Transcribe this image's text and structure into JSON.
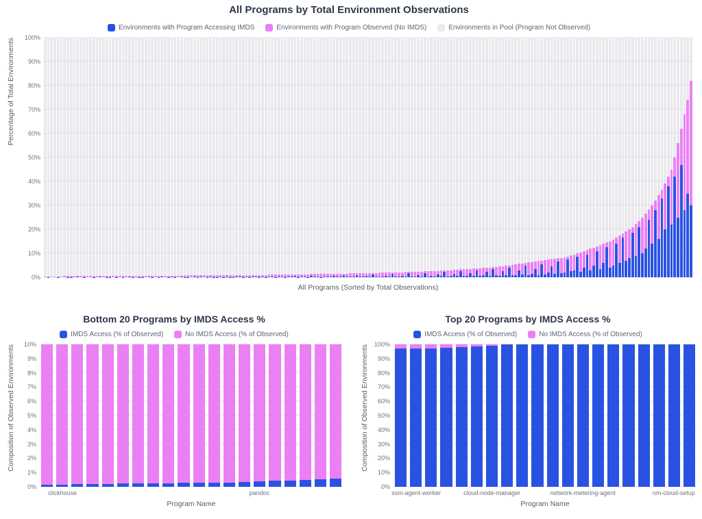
{
  "colors": {
    "imds_blue": "#2a52e2",
    "observed_pink": "#ea80f4",
    "pool_gray": "#e9e9ee",
    "grid": "#e7e7ec",
    "title_text": "#2b3648",
    "axis_text": "#5b6572"
  },
  "chart_data": [
    {
      "id": "all-programs",
      "type": "bar",
      "bar_type": "stacked",
      "title": "All Programs by Total Environment Observations",
      "xlabel": "All Programs (Sorted by Total Observations)",
      "ylabel": "Percentage of Total Environments",
      "ymax": 100,
      "yticks": [
        "0%",
        "10%",
        "20%",
        "30%",
        "40%",
        "50%",
        "60%",
        "70%",
        "80%",
        "90%",
        "100%"
      ],
      "legend": [
        {
          "key": "imds",
          "label": "Environments with Program Accessing IMDS",
          "color": "#2a52e2"
        },
        {
          "key": "observed-no-imds",
          "label": "Environments with Program Observed (No IMDS)",
          "color": "#ea80f4"
        },
        {
          "key": "pool",
          "label": "Environments in Pool (Program Not Observed)",
          "color": "#e9e9ee"
        }
      ],
      "n_bars": 200,
      "xtick_labels": [],
      "series": [
        {
          "key": "imds",
          "color": "#2a52e2",
          "cumulative": [
            0,
            0.1,
            0,
            0,
            0.1,
            0,
            0,
            0.1,
            0.1,
            0,
            0.2,
            0,
            0.1,
            0,
            0,
            0.1,
            0,
            0.2,
            0,
            0.1,
            0.1,
            0,
            0.1,
            0,
            0.1,
            0,
            0.2,
            0.1,
            0,
            0.1,
            0.1,
            0,
            0.2,
            0.1,
            0,
            0.1,
            0.2,
            0,
            0.1,
            0.3,
            0.1,
            0,
            0.2,
            0.1,
            0.1,
            0,
            0.2,
            0.1,
            0.3,
            0,
            0.1,
            0.2,
            0.1,
            0.1,
            0.3,
            0.1,
            0.2,
            0.1,
            0.1,
            0.2,
            0.2,
            0.1,
            0.3,
            0.1,
            0.2,
            0.4,
            0.1,
            0.2,
            0.1,
            0.3,
            0.2,
            0.1,
            0.4,
            0.2,
            0.1,
            0.3,
            0.2,
            0.5,
            0.1,
            0.2,
            0.3,
            0.1,
            0.6,
            0.2,
            0.3,
            0.1,
            0.4,
            0.2,
            0.3,
            0.5,
            0.2,
            0.3,
            0.8,
            0.2,
            0.4,
            0.3,
            1.0,
            0.2,
            0.3,
            0.5,
            0.2,
            1.2,
            0.3,
            0.4,
            0.2,
            0.6,
            0.3,
            1.4,
            0.2,
            0.4,
            0.6,
            0.3,
            1.6,
            0.4,
            0.3,
            0.8,
            0.4,
            1.8,
            0.3,
            0.5,
            0.4,
            1.2,
            0.5,
            2.2,
            0.4,
            0.6,
            1.5,
            0.5,
            2.6,
            0.6,
            0.5,
            1.8,
            0.6,
            3.0,
            0.5,
            0.8,
            2.2,
            0.6,
            3.5,
            0.8,
            0.6,
            2.5,
            0.8,
            4.0,
            1.0,
            0.8,
            3.0,
            1.2,
            4.8,
            0.9,
            1.5,
            3.5,
            1.0,
            5.5,
            1.2,
            2.0,
            4.5,
            1.5,
            6.5,
            1.8,
            2.0,
            7.5,
            2.5,
            3.0,
            8.5,
            2.2,
            4.0,
            9.5,
            3.0,
            5.0,
            11.0,
            3.5,
            6.0,
            12.5,
            4.0,
            5.0,
            14.0,
            6.0,
            16.5,
            7.0,
            8.0,
            18.5,
            9.0,
            21.0,
            10.0,
            12.0,
            24.0,
            14.0,
            28.0,
            16.0,
            33.0,
            20.0,
            38.0,
            22.0,
            42.0,
            25.0,
            47.0,
            28.0,
            35.0,
            30.0
          ]
        },
        {
          "key": "observed-no-imds",
          "color": "#ea80f4",
          "cumulative": [
            0.4,
            0.4,
            0.4,
            0.4,
            0.4,
            0.4,
            0.5,
            0.5,
            0.5,
            0.5,
            0.5,
            0.5,
            0.5,
            0.5,
            0.5,
            0.5,
            0.5,
            0.5,
            0.5,
            0.6,
            0.6,
            0.6,
            0.6,
            0.6,
            0.6,
            0.6,
            0.6,
            0.6,
            0.6,
            0.6,
            0.6,
            0.6,
            0.6,
            0.7,
            0.7,
            0.7,
            0.7,
            0.7,
            0.7,
            0.7,
            0.7,
            0.7,
            0.7,
            0.8,
            0.8,
            0.8,
            0.8,
            0.8,
            0.8,
            0.8,
            0.8,
            0.8,
            0.8,
            0.9,
            0.9,
            0.9,
            0.9,
            0.9,
            0.9,
            0.9,
            0.9,
            0.9,
            0.9,
            1.0,
            1.0,
            1.0,
            1.0,
            1.0,
            1.0,
            1.1,
            1.1,
            1.1,
            1.1,
            1.1,
            1.1,
            1.2,
            1.2,
            1.2,
            1.2,
            1.2,
            1.2,
            1.2,
            1.3,
            1.3,
            1.3,
            1.3,
            1.3,
            1.4,
            1.4,
            1.4,
            1.4,
            1.5,
            1.5,
            1.5,
            1.6,
            1.6,
            1.6,
            1.7,
            1.7,
            1.7,
            1.8,
            1.8,
            1.8,
            1.9,
            1.9,
            1.9,
            2.0,
            2.0,
            2.1,
            2.1,
            2.1,
            2.2,
            2.2,
            2.3,
            2.3,
            2.4,
            2.4,
            2.5,
            2.5,
            2.6,
            2.6,
            2.7,
            2.8,
            2.9,
            3.0,
            3.0,
            3.1,
            3.2,
            3.3,
            3.4,
            3.5,
            3.5,
            3.6,
            3.7,
            3.8,
            3.9,
            4.0,
            4.1,
            4.2,
            4.4,
            4.5,
            4.7,
            4.8,
            5.0,
            5.2,
            5.4,
            5.6,
            5.8,
            6.0,
            6.2,
            6.4,
            6.6,
            6.8,
            7.0,
            7.2,
            7.4,
            7.6,
            7.8,
            7.9,
            8.0,
            8.3,
            8.7,
            9.1,
            9.5,
            10.0,
            10.4,
            10.9,
            11.4,
            11.9,
            12.4,
            13.0,
            13.5,
            14.0,
            14.5,
            15.0,
            15.7,
            16.5,
            17.3,
            18.2,
            19.1,
            20.0,
            21.0,
            22.2,
            23.5,
            25.0,
            26.5,
            28.2,
            30.0,
            32.0,
            34.2,
            36.6,
            39.2,
            42.0,
            45.0,
            50.0,
            56.0,
            62.0,
            68.0,
            74.0,
            82.0
          ]
        },
        {
          "key": "pool",
          "color": "#e9e9ee",
          "cumulative_const": 100
        }
      ]
    },
    {
      "id": "bottom-20-imds",
      "type": "bar",
      "bar_type": "stacked",
      "title": "Bottom 20 Programs by IMDS Access %",
      "xlabel": "Program Name",
      "ylabel": "Composition of Observed Environments",
      "ymax": 10,
      "yticks": [
        "0%",
        "1%",
        "2%",
        "3%",
        "4%",
        "5%",
        "6%",
        "7%",
        "8%",
        "9%",
        "10%"
      ],
      "legend": [
        {
          "key": "imds",
          "label": "IMDS Access (% of Observed)",
          "color": "#2a52e2"
        },
        {
          "key": "no-imds",
          "label": "No IMDS Access (% of Observed)",
          "color": "#ea80f4"
        }
      ],
      "n_bars": 20,
      "xtick_labels": [
        {
          "index": 1,
          "label": "clickhouse"
        },
        {
          "index": 14,
          "label": "pandoc"
        }
      ],
      "series": [
        {
          "key": "imds",
          "color": "#2a52e2",
          "cumulative": [
            0.15,
            0.16,
            0.17,
            0.18,
            0.2,
            0.22,
            0.24,
            0.25,
            0.26,
            0.27,
            0.28,
            0.28,
            0.3,
            0.33,
            0.38,
            0.42,
            0.45,
            0.48,
            0.52,
            0.56
          ]
        },
        {
          "key": "no-imds",
          "color": "#ea80f4",
          "cumulative_const": 100
        }
      ]
    },
    {
      "id": "top-20-imds",
      "type": "bar",
      "bar_type": "stacked",
      "title": "Top 20 Programs by IMDS Access %",
      "xlabel": "Program Name",
      "ylabel": "Composition of Observed Environments",
      "ymax": 100,
      "yticks": [
        "0%",
        "10%",
        "20%",
        "30%",
        "40%",
        "50%",
        "60%",
        "70%",
        "80%",
        "90%",
        "100%"
      ],
      "legend": [
        {
          "key": "imds",
          "label": "IMDS Access (% of Observed)",
          "color": "#2a52e2"
        },
        {
          "key": "no-imds",
          "label": "No IMDS Access (% of Observed)",
          "color": "#ea80f4"
        }
      ],
      "n_bars": 20,
      "xtick_labels": [
        {
          "index": 1,
          "label": "ssm-agent-worker"
        },
        {
          "index": 6,
          "label": "cloud-node-manager"
        },
        {
          "index": 12,
          "label": "network-metering-agent"
        },
        {
          "index": 18,
          "label": "nm-cloud-setup"
        }
      ],
      "series": [
        {
          "key": "imds",
          "color": "#2a52e2",
          "cumulative": [
            96.9,
            97.1,
            97.3,
            97.6,
            98.0,
            98.5,
            99.0,
            100,
            100,
            100,
            100,
            100,
            100,
            100,
            100,
            100,
            100,
            100,
            100,
            100
          ]
        },
        {
          "key": "no-imds",
          "color": "#ea80f4",
          "cumulative_const": 100
        }
      ]
    }
  ]
}
